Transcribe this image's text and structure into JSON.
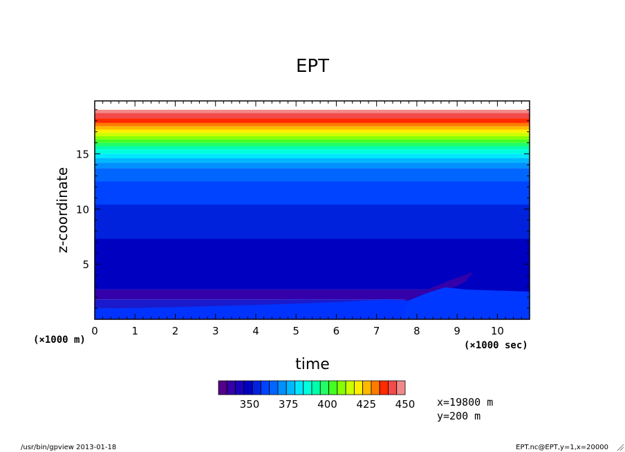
{
  "chart_data": {
    "type": "heatmap",
    "title": "EPT",
    "xlabel": "time",
    "ylabel": "z-coordinate",
    "x_unit_label": "(×1000 sec)",
    "y_unit_label": "(×1000 m)",
    "xlim": [
      0,
      10.8
    ],
    "ylim": [
      0,
      19.8
    ],
    "x_ticks": [
      "0",
      "1",
      "2",
      "3",
      "4",
      "5",
      "6",
      "7",
      "8",
      "9",
      "10"
    ],
    "y_ticks": [
      "5",
      "10",
      "15"
    ],
    "levels": [
      {
        "z": 19.8,
        "color": "#ffffff"
      },
      {
        "z": 19.0,
        "color": "#f08a8a"
      },
      {
        "z": 18.7,
        "color": "#f34a4a"
      },
      {
        "z": 18.2,
        "color": "#ff2a00"
      },
      {
        "z": 17.8,
        "color": "#ff7a00"
      },
      {
        "z": 17.5,
        "color": "#ffb800"
      },
      {
        "z": 17.2,
        "color": "#ffee00"
      },
      {
        "z": 16.9,
        "color": "#ccff00"
      },
      {
        "z": 16.6,
        "color": "#88ff00"
      },
      {
        "z": 16.3,
        "color": "#44ff22"
      },
      {
        "z": 16.0,
        "color": "#22ff66"
      },
      {
        "z": 15.7,
        "color": "#00ffaa"
      },
      {
        "z": 15.4,
        "color": "#00ffdd"
      },
      {
        "z": 15.0,
        "color": "#00e6ff"
      },
      {
        "z": 14.6,
        "color": "#00b8ff"
      },
      {
        "z": 14.2,
        "color": "#0090ff"
      },
      {
        "z": 13.7,
        "color": "#0066ff"
      },
      {
        "z": 12.5,
        "color": "#0044ff"
      },
      {
        "z": 10.4,
        "color": "#0022dd"
      },
      {
        "z": 7.3,
        "color": "#0000c0"
      },
      {
        "z": 2.7,
        "color": "#3300aa"
      },
      {
        "z": 1.8,
        "color": "#1a1acc"
      },
      {
        "z": 1.0,
        "color": "#0026ee"
      },
      {
        "z": 0.5,
        "color": "#0044ff"
      }
    ],
    "colorbar": {
      "colors": [
        "#550088",
        "#3300aa",
        "#1a00bb",
        "#0000c0",
        "#0022dd",
        "#0044ff",
        "#0066ff",
        "#0090ff",
        "#00b8ff",
        "#00e6ff",
        "#00ffdd",
        "#00ffaa",
        "#22ff66",
        "#44ff22",
        "#88ff00",
        "#ccff00",
        "#ffee00",
        "#ffb800",
        "#ff7a00",
        "#ff2a00",
        "#f34a4a",
        "#f08a8a"
      ],
      "tick_values": [
        350,
        375,
        400,
        425,
        450
      ],
      "tick_labels": [
        "350",
        "375",
        "400",
        "425",
        "450"
      ],
      "range": [
        330,
        450
      ]
    },
    "annotations": [
      "x=19800 m",
      "y=200 m"
    ]
  },
  "footer": {
    "left": "/usr/bin/gpview  2013-01-18",
    "right": "EPT.nc@EPT,y=1,x=20000"
  },
  "colors": {
    "axis": "#000000",
    "lower_purple": "#3300aa",
    "deep_blue": "#0000c0",
    "bright_blue": "#0033ff"
  }
}
